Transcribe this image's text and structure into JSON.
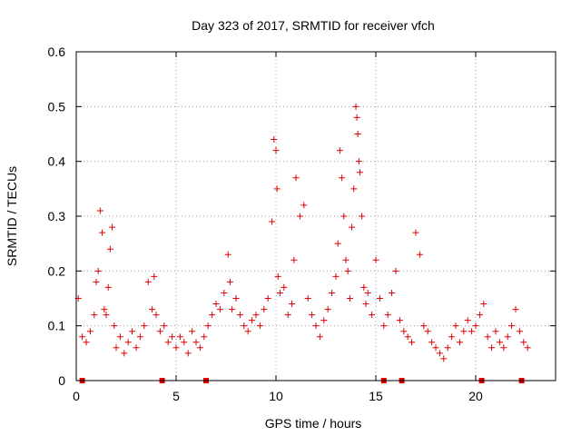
{
  "chart_data": {
    "type": "scatter",
    "title": "Day 323 of 2017, SRMTID for receiver vfch",
    "xlabel": "GPS time / hours",
    "ylabel": "SRMTID / TECUs",
    "xlim": [
      0,
      24
    ],
    "ylim": [
      0,
      0.6
    ],
    "xticks": [
      "0",
      "5",
      "10",
      "15",
      "20"
    ],
    "xtick_values": [
      0,
      5,
      10,
      15,
      20
    ],
    "yticks": [
      "0",
      "0.1",
      "0.2",
      "0.3",
      "0.4",
      "0.5",
      "0.6"
    ],
    "ytick_values": [
      0,
      0.1,
      0.2,
      0.3,
      0.4,
      0.5,
      0.6
    ],
    "grid": true,
    "marker": "+",
    "color": "#e00000",
    "series": [
      {
        "name": "SRMTID",
        "x": [
          0.1,
          0.3,
          0.5,
          0.7,
          0.9,
          1.0,
          1.1,
          1.2,
          1.3,
          1.4,
          1.5,
          1.6,
          1.7,
          1.8,
          1.9,
          2.0,
          2.2,
          2.4,
          2.6,
          2.8,
          3.0,
          3.2,
          3.4,
          3.6,
          3.8,
          3.9,
          4.0,
          4.2,
          4.4,
          4.6,
          4.8,
          5.0,
          5.2,
          5.4,
          5.6,
          5.8,
          6.0,
          6.2,
          6.4,
          6.6,
          6.8,
          7.0,
          7.2,
          7.4,
          7.6,
          7.7,
          7.8,
          8.0,
          8.2,
          8.4,
          8.6,
          8.8,
          9.0,
          9.2,
          9.4,
          9.6,
          9.8,
          9.9,
          10.0,
          10.05,
          10.1,
          10.2,
          10.4,
          10.6,
          10.8,
          10.9,
          11.0,
          11.2,
          11.4,
          11.6,
          11.8,
          12.0,
          12.2,
          12.4,
          12.6,
          12.8,
          13.0,
          13.1,
          13.2,
          13.3,
          13.4,
          13.5,
          13.6,
          13.7,
          13.8,
          13.9,
          14.0,
          14.05,
          14.1,
          14.15,
          14.2,
          14.3,
          14.4,
          14.5,
          14.6,
          14.8,
          15.0,
          15.2,
          15.4,
          15.6,
          15.8,
          16.0,
          16.2,
          16.4,
          16.6,
          16.8,
          17.0,
          17.2,
          17.4,
          17.6,
          17.8,
          18.0,
          18.2,
          18.4,
          18.6,
          18.8,
          19.0,
          19.2,
          19.4,
          19.6,
          19.8,
          20.0,
          20.2,
          20.4,
          20.6,
          20.8,
          21.0,
          21.2,
          21.4,
          21.6,
          21.8,
          22.0,
          22.2,
          22.4,
          22.6
        ],
        "y": [
          0.15,
          0.08,
          0.07,
          0.09,
          0.12,
          0.18,
          0.2,
          0.31,
          0.27,
          0.13,
          0.12,
          0.17,
          0.24,
          0.28,
          0.1,
          0.06,
          0.08,
          0.05,
          0.07,
          0.09,
          0.06,
          0.08,
          0.1,
          0.18,
          0.13,
          0.19,
          0.12,
          0.09,
          0.1,
          0.07,
          0.08,
          0.06,
          0.08,
          0.07,
          0.05,
          0.09,
          0.07,
          0.06,
          0.08,
          0.1,
          0.12,
          0.14,
          0.13,
          0.16,
          0.23,
          0.18,
          0.13,
          0.15,
          0.12,
          0.1,
          0.09,
          0.11,
          0.12,
          0.1,
          0.13,
          0.15,
          0.29,
          0.44,
          0.42,
          0.35,
          0.19,
          0.16,
          0.17,
          0.12,
          0.14,
          0.22,
          0.37,
          0.3,
          0.32,
          0.15,
          0.12,
          0.1,
          0.08,
          0.11,
          0.13,
          0.16,
          0.19,
          0.25,
          0.42,
          0.37,
          0.3,
          0.22,
          0.2,
          0.15,
          0.28,
          0.35,
          0.5,
          0.48,
          0.45,
          0.4,
          0.38,
          0.3,
          0.17,
          0.14,
          0.16,
          0.12,
          0.22,
          0.15,
          0.1,
          0.12,
          0.16,
          0.2,
          0.11,
          0.09,
          0.08,
          0.07,
          0.27,
          0.23,
          0.1,
          0.09,
          0.07,
          0.06,
          0.05,
          0.04,
          0.06,
          0.08,
          0.1,
          0.07,
          0.09,
          0.11,
          0.09,
          0.1,
          0.12,
          0.14,
          0.08,
          0.06,
          0.09,
          0.07,
          0.06,
          0.08,
          0.1,
          0.13,
          0.09,
          0.07,
          0.06
        ],
        "bottom_markers_x": [
          0.3,
          4.3,
          6.5,
          15.4,
          16.3,
          20.3,
          22.3
        ]
      }
    ]
  }
}
